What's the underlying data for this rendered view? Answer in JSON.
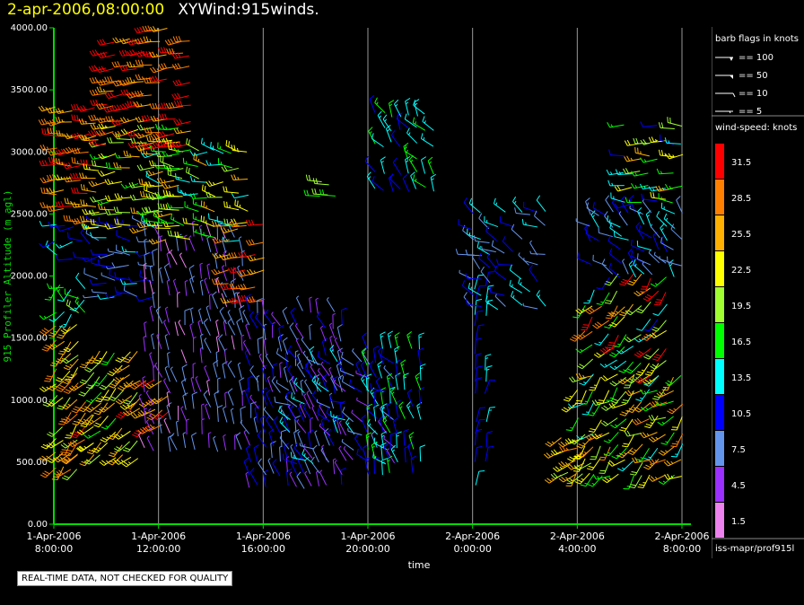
{
  "title": {
    "time": "2-apr-2006,08:00:00",
    "name": "XYWind:915winds."
  },
  "quality_note": "REAL-TIME DATA, NOT CHECKED FOR QUALITY",
  "source_label": "iss-mapr/prof915l",
  "colors": {
    "axis": "#00dd00",
    "grid": "#999999",
    "background": "#000000"
  },
  "barb_legend": {
    "title": "barb flags in knots",
    "items": [
      "== 100",
      "== 50",
      "== 10",
      "== 5"
    ]
  },
  "speed_legend": {
    "title": "wind-speed: knots",
    "bins": [
      {
        "label": "31.5",
        "color": "#ff0000"
      },
      {
        "label": "28.5",
        "color": "#ff8000"
      },
      {
        "label": "25.5",
        "color": "#ffb000"
      },
      {
        "label": "22.5",
        "color": "#ffff00"
      },
      {
        "label": "19.5",
        "color": "#a0ff30"
      },
      {
        "label": "16.5",
        "color": "#00ff00"
      },
      {
        "label": "13.5",
        "color": "#00ffff"
      },
      {
        "label": "10.5",
        "color": "#0000ff"
      },
      {
        "label": "7.5",
        "color": "#6495ed"
      },
      {
        "label": "4.5",
        "color": "#9b30ff"
      },
      {
        "label": "1.5",
        "color": "#ee82ee"
      }
    ]
  },
  "chart_data": {
    "type": "scatter",
    "title": "2-apr-2006,08:00:00 XYWind:915winds.",
    "xlabel": "time",
    "ylabel": "915 Profiler Altitude (m agl)",
    "ylim": [
      0,
      4000
    ],
    "xlim": [
      "1-Apr-2006 08:00:00",
      "2-Apr-2006 08:00:00"
    ],
    "x_ticks": [
      {
        "line1": "1-Apr-2006",
        "line2": "8:00:00",
        "hours": 0
      },
      {
        "line1": "1-Apr-2006",
        "line2": "12:00:00",
        "hours": 4
      },
      {
        "line1": "1-Apr-2006",
        "line2": "16:00:00",
        "hours": 8
      },
      {
        "line1": "1-Apr-2006",
        "line2": "20:00:00",
        "hours": 12
      },
      {
        "line1": "2-Apr-2006",
        "line2": "0:00:00",
        "hours": 16
      },
      {
        "line1": "2-Apr-2006",
        "line2": "4:00:00",
        "hours": 20
      },
      {
        "line1": "2-Apr-2006",
        "line2": "8:00:00",
        "hours": 24
      }
    ],
    "y_ticks": [
      "0.00",
      "500.00",
      "1000.00",
      "1500.00",
      "2000.00",
      "2500.00",
      "3000.00",
      "3500.00",
      "4000.00"
    ],
    "y_tick_values": [
      0,
      500,
      1000,
      1500,
      2000,
      2500,
      3000,
      3500,
      4000
    ],
    "grid": "vertical lines at each x tick",
    "segments": [
      {
        "t0": 0.1,
        "t1": 0.9,
        "h0": 450,
        "h1": 1600,
        "spd": [
          19,
          30
        ],
        "dir": [
          200,
          240
        ]
      },
      {
        "t0": 0.9,
        "t1": 1.5,
        "h0": 550,
        "h1": 1350,
        "spd": [
          20,
          32
        ],
        "dir": [
          210,
          240
        ]
      },
      {
        "t0": 0.1,
        "t1": 1.2,
        "h0": 1700,
        "h1": 1900,
        "spd": [
          12,
          20
        ],
        "dir": [
          200,
          330
        ]
      },
      {
        "t0": 0.1,
        "t1": 1.7,
        "h0": 2150,
        "h1": 2400,
        "spd": [
          9,
          14
        ],
        "dir": [
          240,
          330
        ]
      },
      {
        "t0": 0.1,
        "t1": 1.6,
        "h0": 2450,
        "h1": 3350,
        "spd": [
          23,
          32
        ],
        "dir": [
          250,
          280
        ]
      },
      {
        "t0": 1.5,
        "t1": 3.2,
        "h0": 550,
        "h1": 1400,
        "spd": [
          17,
          27
        ],
        "dir": [
          210,
          240
        ]
      },
      {
        "t0": 1.7,
        "t1": 3.8,
        "h0": 1850,
        "h1": 2400,
        "spd": [
          6,
          14
        ],
        "dir": [
          250,
          300
        ]
      },
      {
        "t0": 1.7,
        "t1": 4.8,
        "h0": 2400,
        "h1": 3200,
        "spd": [
          15,
          26
        ],
        "dir": [
          250,
          280
        ]
      },
      {
        "t0": 2.0,
        "t1": 5.2,
        "h0": 3050,
        "h1": 4000,
        "spd": [
          26,
          32
        ],
        "dir": [
          250,
          270
        ]
      },
      {
        "t0": 3.0,
        "t1": 4.4,
        "h0": 800,
        "h1": 1150,
        "spd": [
          24,
          32
        ],
        "dir": [
          220,
          250
        ]
      },
      {
        "t0": 3.5,
        "t1": 7.2,
        "h0": 600,
        "h1": 2300,
        "spd": [
          2,
          9
        ],
        "dir": [
          330,
          360
        ]
      },
      {
        "t0": 4.0,
        "t1": 7.4,
        "h0": 2300,
        "h1": 3000,
        "spd": [
          12,
          25
        ],
        "dir": [
          250,
          300
        ]
      },
      {
        "t0": 6.7,
        "t1": 8.0,
        "h0": 1800,
        "h1": 2400,
        "spd": [
          25,
          32
        ],
        "dir": [
          250,
          270
        ]
      },
      {
        "t0": 7.5,
        "t1": 11.0,
        "h0": 300,
        "h1": 1700,
        "spd": [
          4,
          12
        ],
        "dir": [
          320,
          360
        ]
      },
      {
        "t0": 9.0,
        "t1": 13.0,
        "h0": 500,
        "h1": 1300,
        "spd": [
          4,
          15
        ],
        "dir": [
          280,
          340
        ]
      },
      {
        "t0": 12.0,
        "t1": 14.0,
        "h0": 400,
        "h1": 1400,
        "spd": [
          9,
          17
        ],
        "dir": [
          330,
          360
        ]
      },
      {
        "t0": 12.3,
        "t1": 14.5,
        "h0": 2700,
        "h1": 3300,
        "spd": [
          10,
          16
        ],
        "dir": [
          300,
          350
        ]
      },
      {
        "t0": 10.2,
        "t1": 10.8,
        "h0": 2650,
        "h1": 2750,
        "spd": [
          17,
          19
        ],
        "dir": [
          270,
          280
        ]
      },
      {
        "t0": 16.1,
        "t1": 16.5,
        "h0": 300,
        "h1": 1900,
        "spd": [
          9,
          14
        ],
        "dir": [
          0,
          20
        ]
      },
      {
        "t0": 16.0,
        "t1": 18.8,
        "h0": 1750,
        "h1": 2500,
        "spd": [
          6,
          14
        ],
        "dir": [
          270,
          330
        ]
      },
      {
        "t0": 19.4,
        "t1": 20.5,
        "h0": 400,
        "h1": 700,
        "spd": [
          17,
          27
        ],
        "dir": [
          220,
          250
        ]
      },
      {
        "t0": 20.0,
        "t1": 24.0,
        "h0": 400,
        "h1": 1200,
        "spd": [
          14,
          28
        ],
        "dir": [
          200,
          260
        ]
      },
      {
        "t0": 20.3,
        "t1": 23.4,
        "h0": 1200,
        "h1": 2000,
        "spd": [
          11,
          32
        ],
        "dir": [
          200,
          240
        ]
      },
      {
        "t0": 20.5,
        "t1": 24.0,
        "h0": 2000,
        "h1": 2500,
        "spd": [
          6,
          14
        ],
        "dir": [
          280,
          340
        ]
      },
      {
        "t0": 21.8,
        "t1": 24.0,
        "h0": 2600,
        "h1": 3200,
        "spd": [
          10,
          26
        ],
        "dir": [
          250,
          290
        ]
      }
    ]
  }
}
